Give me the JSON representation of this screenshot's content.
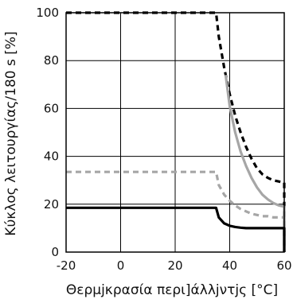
{
  "chart_data": {
    "type": "line",
    "xlabel": "Θερμjκρασία περι]άλλjντjς [°C]",
    "ylabel": "Κύκλος λειτουργίας/180 s [%]",
    "xlim": [
      -20,
      60
    ],
    "ylim": [
      0,
      100
    ],
    "x_ticks": [
      "-20",
      "0",
      "20",
      "40",
      "60"
    ],
    "y_ticks": [
      "0",
      "20",
      "40",
      "60",
      "80",
      "100"
    ],
    "grid": true,
    "series": [
      {
        "style": "black-dashed",
        "color": "#000000",
        "x": [
          -20,
          35,
          36,
          38,
          40,
          42,
          44,
          46,
          48,
          50,
          52,
          54,
          56,
          58,
          60,
          60
        ],
        "y": [
          100,
          100,
          90,
          77,
          66,
          57,
          50,
          44,
          39,
          35,
          32.5,
          31,
          30,
          29.5,
          29,
          0
        ]
      },
      {
        "style": "gray-solid",
        "color": "#a6a6a6",
        "x": [
          38.5,
          40,
          42,
          44,
          46,
          48,
          50,
          52,
          54,
          56,
          58,
          60,
          60
        ],
        "y": [
          74,
          61,
          50,
          42,
          36,
          31,
          27,
          24,
          22,
          20.5,
          19.5,
          19,
          0
        ]
      },
      {
        "style": "gray-dashed",
        "color": "#a6a6a6",
        "x": [
          -20,
          35,
          36,
          38,
          40,
          42,
          44,
          46,
          48,
          50,
          52,
          54,
          56,
          58,
          60,
          60
        ],
        "y": [
          33.5,
          33.5,
          28,
          24,
          21.5,
          19.5,
          18,
          17,
          16,
          15.5,
          15,
          15,
          14.5,
          14.5,
          14.5,
          0
        ]
      },
      {
        "style": "black-solid",
        "color": "#000000",
        "x": [
          -20,
          35,
          36,
          38,
          40,
          42,
          44,
          46,
          50,
          55,
          60,
          60
        ],
        "y": [
          18.5,
          18.5,
          14.5,
          12,
          11,
          10.5,
          10.2,
          10,
          10,
          10,
          10,
          0
        ]
      }
    ]
  }
}
